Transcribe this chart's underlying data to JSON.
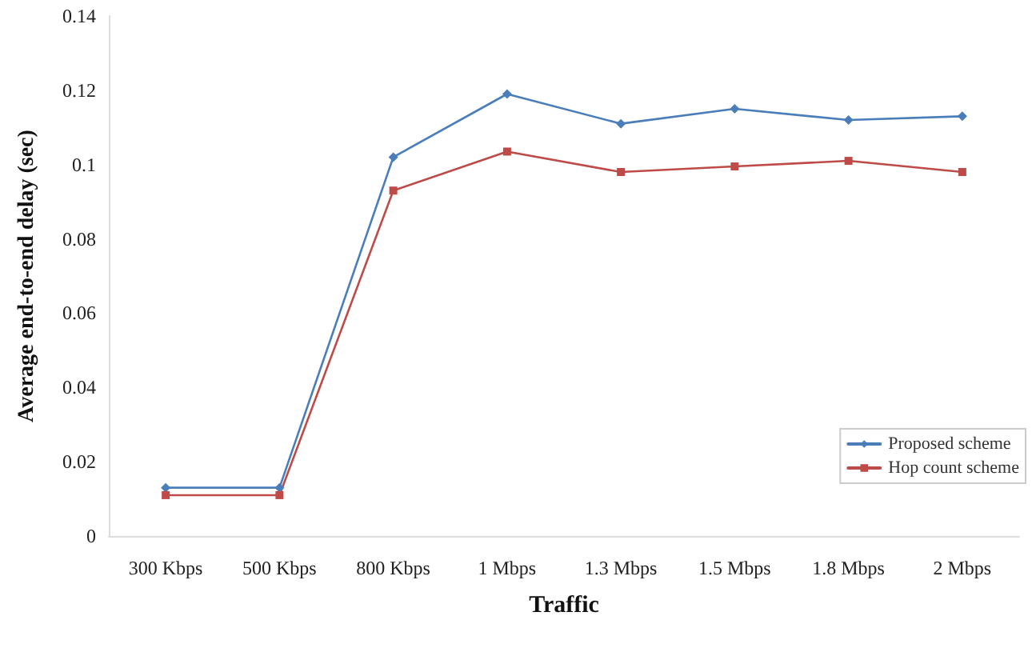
{
  "chart_data": {
    "type": "line",
    "xlabel": "Traffic",
    "ylabel": "Average end-to-end delay (sec)",
    "categories": [
      "300 Kbps",
      "500 Kbps",
      "800 Kbps",
      "1 Mbps",
      "1.3 Mbps",
      "1.5 Mbps",
      "1.8 Mbps",
      "2 Mbps"
    ],
    "series": [
      {
        "name": "Proposed scheme",
        "color": "#4a7ebb",
        "marker": "diamond",
        "values": [
          0.013,
          0.013,
          0.102,
          0.119,
          0.111,
          0.115,
          0.112,
          0.113
        ]
      },
      {
        "name": "Hop count scheme",
        "color": "#be4b48",
        "marker": "square",
        "values": [
          0.011,
          0.011,
          0.093,
          0.1035,
          0.098,
          0.0995,
          0.101,
          0.098
        ]
      }
    ],
    "ylim": [
      0,
      0.14
    ],
    "yticks": [
      0,
      0.02,
      0.04,
      0.06,
      0.08,
      0.1,
      0.12,
      0.14
    ],
    "grid": false,
    "legend": "bottom right",
    "line_style": "solid"
  }
}
